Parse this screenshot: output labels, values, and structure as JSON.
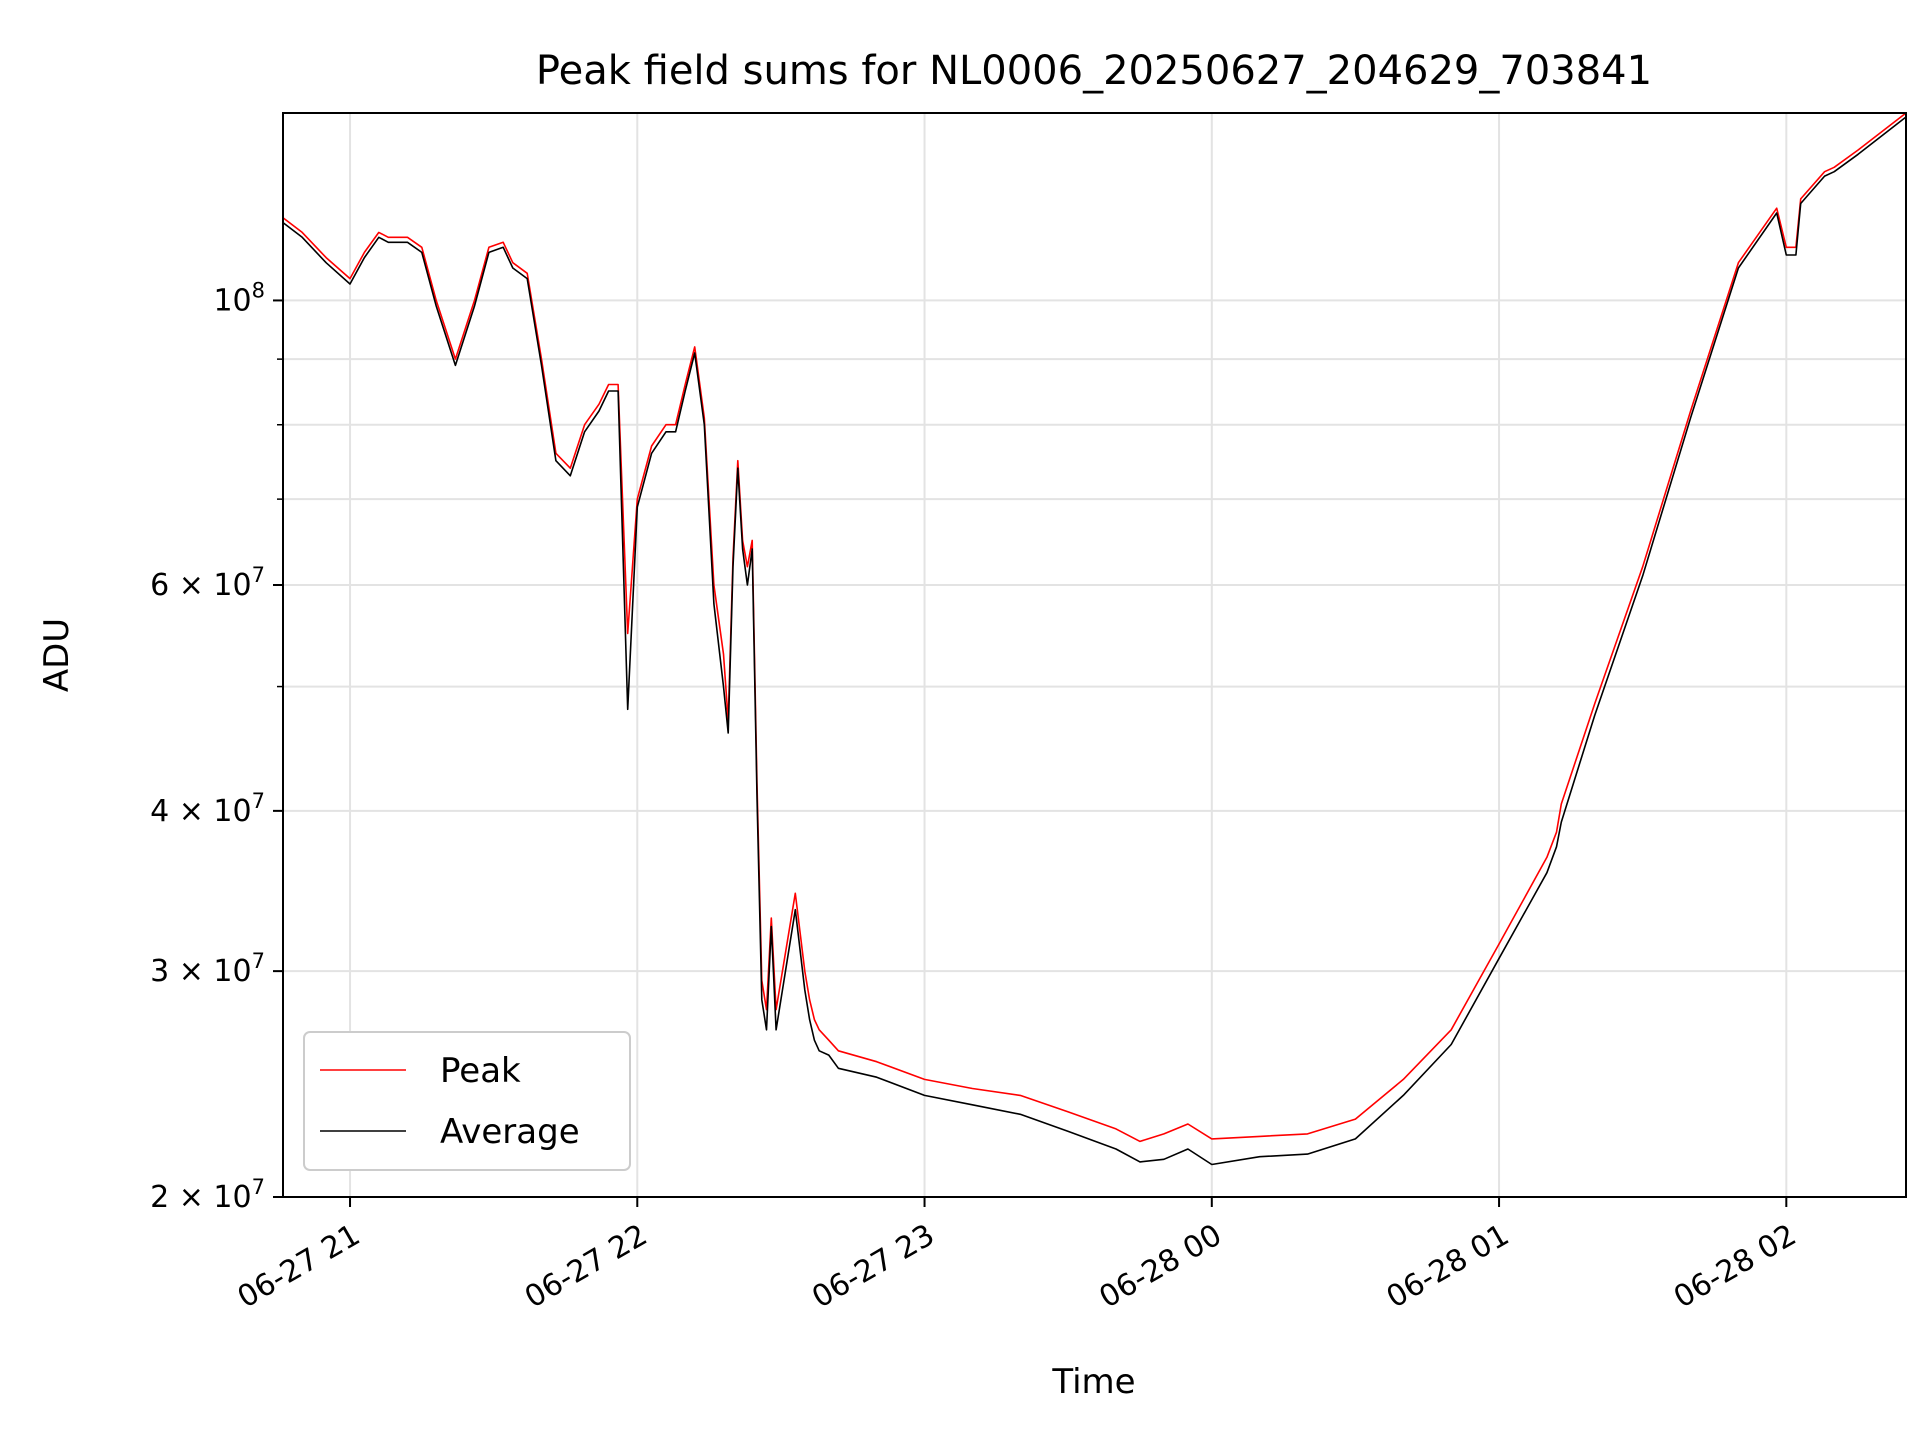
{
  "chart_data": {
    "type": "line",
    "title": "Peak field sums for NL0006_20250627_204629_703841",
    "xlabel": "Time",
    "ylabel": "ADU",
    "y_scale": "log",
    "ylim": [
      20000000,
      140000000
    ],
    "xlim": [
      "06-27 20:46",
      "06-28 02:25"
    ],
    "grid": true,
    "legend_position": "lower-left",
    "x_ticks": [
      {
        "label": "06-27 21",
        "t": 21.0
      },
      {
        "label": "06-27 22",
        "t": 22.0
      },
      {
        "label": "06-27 23",
        "t": 23.0
      },
      {
        "label": "06-28 00",
        "t": 24.0
      },
      {
        "label": "06-28 01",
        "t": 25.0
      },
      {
        "label": "06-28 02",
        "t": 26.0
      }
    ],
    "y_major_ticks": [
      {
        "value": 20000000,
        "mant": "2",
        "exp": "7",
        "has_mant": true
      },
      {
        "value": 30000000,
        "mant": "3",
        "exp": "7",
        "has_mant": true
      },
      {
        "value": 40000000,
        "mant": "4",
        "exp": "7",
        "has_mant": true
      },
      {
        "value": 60000000,
        "mant": "6",
        "exp": "7",
        "has_mant": true
      },
      {
        "value": 100000000,
        "mant": "",
        "exp": "8",
        "has_mant": false
      }
    ],
    "y_minor_ticks": [
      50000000,
      70000000,
      80000000,
      90000000
    ],
    "series": [
      {
        "name": "Peak",
        "color": "#ff0000",
        "x": [
          "06-27 20:46",
          "06-27 20:50",
          "06-27 20:55",
          "06-27 21:00",
          "06-27 21:03",
          "06-27 21:06",
          "06-27 21:08",
          "06-27 21:12",
          "06-27 21:15",
          "06-27 21:18",
          "06-27 21:22",
          "06-27 21:26",
          "06-27 21:29",
          "06-27 21:32",
          "06-27 21:34",
          "06-27 21:37",
          "06-27 21:40",
          "06-27 21:43",
          "06-27 21:46",
          "06-27 21:49",
          "06-27 21:52",
          "06-27 21:54",
          "06-27 21:56",
          "06-27 21:58",
          "06-27 22:00",
          "06-27 22:03",
          "06-27 22:06",
          "06-27 22:08",
          "06-27 22:10",
          "06-27 22:12",
          "06-27 22:14",
          "06-27 22:16",
          "06-27 22:18",
          "06-27 22:19",
          "06-27 22:20",
          "06-27 22:21",
          "06-27 22:22",
          "06-27 22:23",
          "06-27 22:24",
          "06-27 22:25",
          "06-27 22:26",
          "06-27 22:27",
          "06-27 22:28",
          "06-27 22:29",
          "06-27 22:33",
          "06-27 22:35",
          "06-27 22:36",
          "06-27 22:37",
          "06-27 22:38",
          "06-27 22:40",
          "06-27 22:42",
          "06-27 22:50",
          "06-27 23:00",
          "06-27 23:10",
          "06-27 23:20",
          "06-27 23:30",
          "06-27 23:40",
          "06-27 23:45",
          "06-27 23:50",
          "06-27 23:55",
          "06-28 00:00",
          "06-28 00:10",
          "06-28 00:20",
          "06-28 00:30",
          "06-28 00:40",
          "06-28 00:50",
          "06-28 01:00",
          "06-28 01:10",
          "06-28 01:12",
          "06-28 01:13",
          "06-28 01:20",
          "06-28 01:30",
          "06-28 01:40",
          "06-28 01:50",
          "06-28 01:58",
          "06-28 02:00",
          "06-28 02:02",
          "06-28 02:03",
          "06-28 02:08",
          "06-28 02:10",
          "06-28 02:15",
          "06-28 02:25"
        ],
        "values": [
          116000000,
          113000000,
          108000000,
          104000000,
          109000000,
          113000000,
          112000000,
          112000000,
          110000000,
          100000000,
          90000000,
          100000000,
          110000000,
          111000000,
          107000000,
          105000000,
          90000000,
          76000000,
          74000000,
          80000000,
          83000000,
          86000000,
          86000000,
          55000000,
          70000000,
          77000000,
          80000000,
          80000000,
          86000000,
          92000000,
          81000000,
          60000000,
          53000000,
          47000000,
          63000000,
          75000000,
          65000000,
          62000000,
          65000000,
          42000000,
          29500000,
          28000000,
          33000000,
          28000000,
          34500000,
          30000000,
          28500000,
          27500000,
          27000000,
          26500000,
          26000000,
          25500000,
          24700000,
          24300000,
          24000000,
          23300000,
          22600000,
          22100000,
          22400000,
          22800000,
          22200000,
          22300000,
          22400000,
          23000000,
          24700000,
          27000000,
          31500000,
          36800000,
          38500000,
          40500000,
          48500000,
          62000000,
          82000000,
          107000000,
          118000000,
          110000000,
          110000000,
          120000000,
          126000000,
          127000000,
          131000000,
          140000000
        ]
      },
      {
        "name": "Average",
        "color": "#000000",
        "x": [
          "06-27 20:46",
          "06-27 20:50",
          "06-27 20:55",
          "06-27 21:00",
          "06-27 21:03",
          "06-27 21:06",
          "06-27 21:08",
          "06-27 21:12",
          "06-27 21:15",
          "06-27 21:18",
          "06-27 21:22",
          "06-27 21:26",
          "06-27 21:29",
          "06-27 21:32",
          "06-27 21:34",
          "06-27 21:37",
          "06-27 21:40",
          "06-27 21:43",
          "06-27 21:46",
          "06-27 21:49",
          "06-27 21:52",
          "06-27 21:54",
          "06-27 21:56",
          "06-27 21:58",
          "06-27 22:00",
          "06-27 22:03",
          "06-27 22:06",
          "06-27 22:08",
          "06-27 22:10",
          "06-27 22:12",
          "06-27 22:14",
          "06-27 22:16",
          "06-27 22:18",
          "06-27 22:19",
          "06-27 22:20",
          "06-27 22:21",
          "06-27 22:22",
          "06-27 22:23",
          "06-27 22:24",
          "06-27 22:25",
          "06-27 22:26",
          "06-27 22:27",
          "06-27 22:28",
          "06-27 22:29",
          "06-27 22:33",
          "06-27 22:35",
          "06-27 22:36",
          "06-27 22:37",
          "06-27 22:38",
          "06-27 22:40",
          "06-27 22:42",
          "06-27 22:50",
          "06-27 23:00",
          "06-27 23:10",
          "06-27 23:20",
          "06-27 23:30",
          "06-27 23:40",
          "06-27 23:45",
          "06-27 23:50",
          "06-27 23:55",
          "06-28 00:00",
          "06-28 00:10",
          "06-28 00:20",
          "06-28 00:30",
          "06-28 00:40",
          "06-28 00:50",
          "06-28 01:00",
          "06-28 01:10",
          "06-28 01:12",
          "06-28 01:13",
          "06-28 01:20",
          "06-28 01:30",
          "06-28 01:40",
          "06-28 01:50",
          "06-28 01:58",
          "06-28 02:00",
          "06-28 02:02",
          "06-28 02:03",
          "06-28 02:08",
          "06-28 02:10",
          "06-28 02:15",
          "06-28 02:25"
        ],
        "values": [
          115000000,
          112000000,
          107000000,
          103000000,
          108000000,
          112000000,
          111000000,
          111000000,
          109000000,
          99000000,
          89000000,
          99000000,
          109000000,
          110000000,
          106000000,
          104000000,
          89000000,
          75000000,
          73000000,
          79000000,
          82000000,
          85000000,
          85000000,
          48000000,
          69000000,
          76000000,
          79000000,
          79000000,
          85000000,
          91000000,
          80000000,
          58000000,
          50000000,
          46000000,
          62000000,
          74000000,
          64000000,
          60000000,
          64000000,
          41000000,
          28500000,
          27000000,
          32500000,
          27000000,
          33500000,
          29000000,
          27500000,
          26500000,
          26000000,
          25800000,
          25200000,
          24800000,
          24000000,
          23600000,
          23200000,
          22500000,
          21800000,
          21300000,
          21400000,
          21800000,
          21200000,
          21500000,
          21600000,
          22200000,
          24000000,
          26300000,
          30700000,
          35800000,
          37500000,
          39200000,
          47500000,
          61000000,
          81000000,
          106000000,
          117000000,
          108500000,
          108500000,
          119000000,
          125000000,
          126000000,
          130000000,
          139000000
        ]
      }
    ]
  }
}
